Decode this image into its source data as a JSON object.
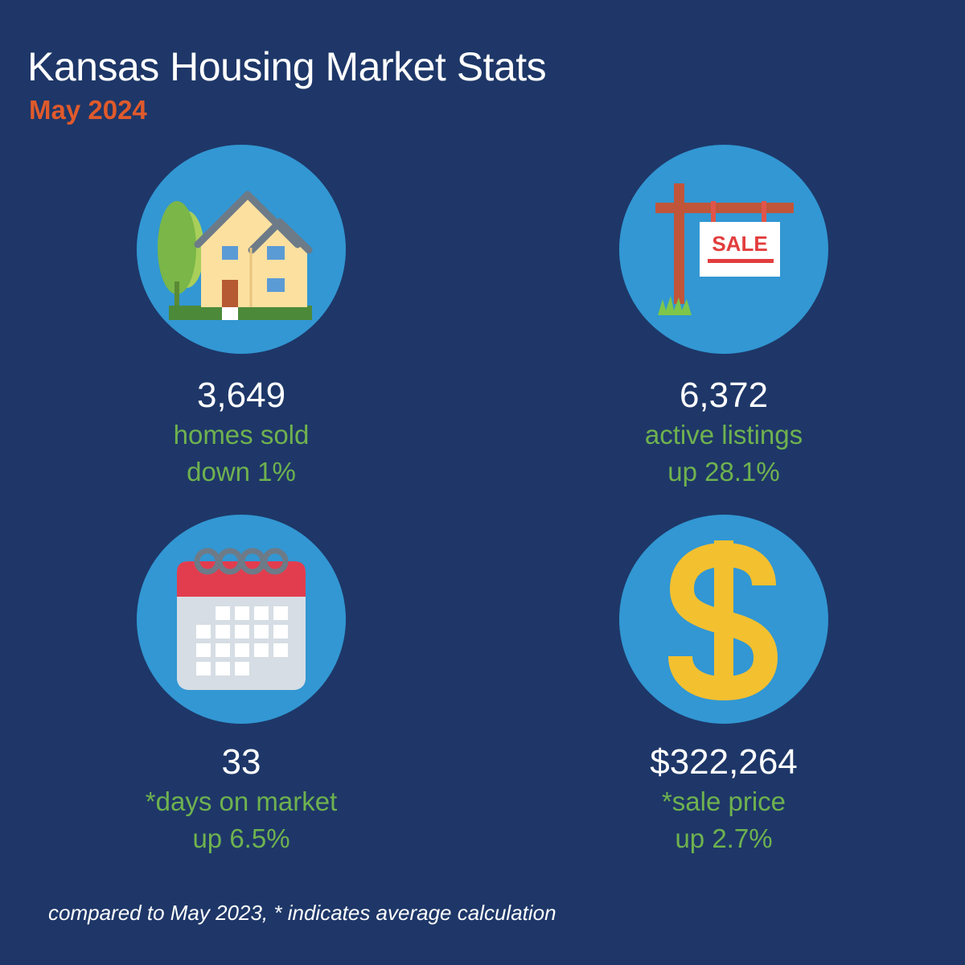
{
  "header": {
    "title": "Kansas Housing Market Stats",
    "subtitle": "May 2024"
  },
  "colors": {
    "background": "#1e3768",
    "circle": "#3297d3",
    "accent_orange": "#e05a2b",
    "accent_green": "#6fb24f",
    "text_white": "#ffffff"
  },
  "stats": [
    {
      "icon": "house-icon",
      "value": "3,649",
      "label": "homes sold",
      "change": "down 1%"
    },
    {
      "icon": "for-sale-sign-icon",
      "value": "6,372",
      "label": "active listings",
      "change": "up 28.1%",
      "sign_text": "SALE"
    },
    {
      "icon": "calendar-icon",
      "value": "33",
      "label": "*days on market",
      "change": "up 6.5%"
    },
    {
      "icon": "dollar-sign-icon",
      "value": "$322,264",
      "label": "*sale price",
      "change": "up 2.7%"
    }
  ],
  "footnote": "compared to May 2023,  * indicates average calculation"
}
